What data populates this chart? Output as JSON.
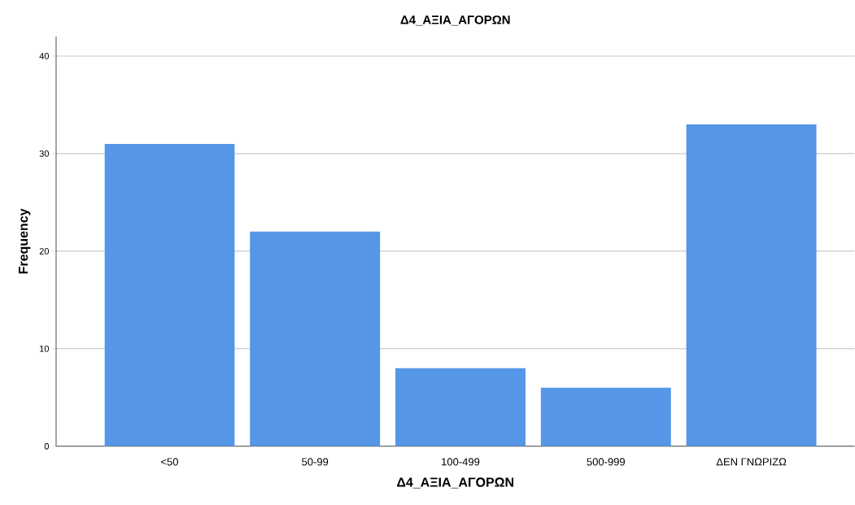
{
  "chart_data": {
    "type": "bar",
    "title": "Δ4_ΑΞΙΑ_ΑΓΟΡΩΝ",
    "xlabel": "Δ4_ΑΞΙΑ_ΑΓΟΡΩΝ",
    "ylabel": "Frequency",
    "categories": [
      "<50",
      "50-99",
      "100-499",
      "500-999",
      "ΔΕΝ ΓΝΩΡΙΖΩ"
    ],
    "values": [
      31,
      22,
      8,
      6,
      33
    ],
    "color": "#5596e6",
    "ylim": [
      0,
      42
    ],
    "yticks": [
      0,
      10,
      20,
      30,
      40
    ],
    "grid": "y"
  }
}
